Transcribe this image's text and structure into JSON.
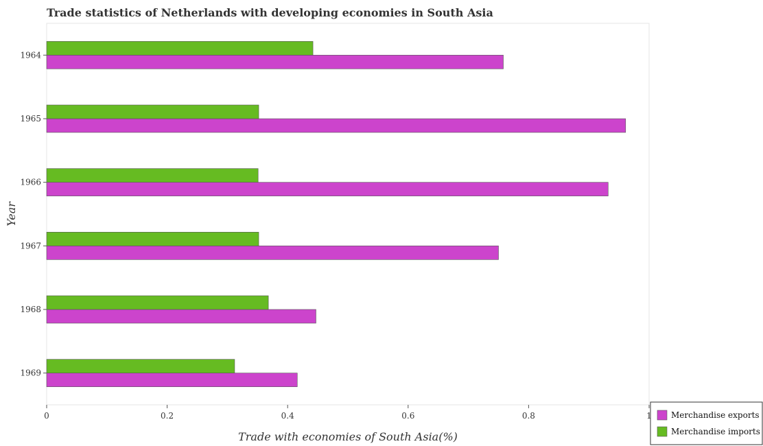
{
  "chart_data": {
    "type": "bar",
    "orientation": "horizontal",
    "title": "Trade statistics of Netherlands with developing economies in South Asia",
    "xlabel": "Trade with economies of South Asia(%)",
    "ylabel": "Year",
    "categories": [
      "1964",
      "1965",
      "1966",
      "1967",
      "1968",
      "1969"
    ],
    "series": [
      {
        "name": "Merchandise exports",
        "color": "#cc44cc",
        "values": [
          0.758,
          0.961,
          0.932,
          0.75,
          0.447,
          0.416
        ]
      },
      {
        "name": "Merchandise imports",
        "color": "#66bb22",
        "values": [
          0.442,
          0.352,
          0.351,
          0.352,
          0.368,
          0.312
        ]
      }
    ],
    "xlim": [
      0,
      1
    ],
    "xticks": [
      0,
      0.2,
      0.4,
      0.6,
      0.8,
      1
    ],
    "xtick_labels": [
      "0",
      "0.2",
      "0.4",
      "0.6",
      "0.8",
      "1"
    ],
    "grid": false,
    "legend_position": "bottom-right"
  }
}
